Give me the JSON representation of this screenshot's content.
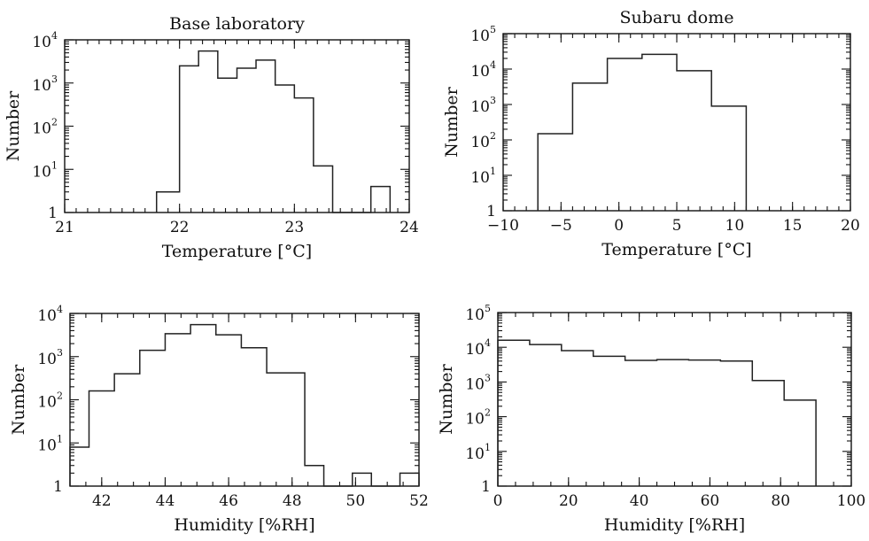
{
  "chart_data": [
    {
      "type": "histogram",
      "title": "Base laboratory",
      "xlabel": "Temperature [°C]",
      "ylabel": "Number",
      "xlim": [
        21,
        24
      ],
      "ylim": [
        1,
        10000
      ],
      "yscale": "log",
      "xticks": [
        21,
        22,
        23,
        24
      ],
      "xtick_labels": [
        "21",
        "22",
        "23",
        "24"
      ],
      "yticks": [
        1,
        10,
        100,
        1000,
        10000
      ],
      "series": [
        {
          "edges": [
            21.8,
            22.0,
            22.166,
            22.333,
            22.5,
            22.666,
            22.833,
            23.0,
            23.166,
            23.333,
            23.666,
            23.833
          ],
          "counts": [
            3,
            2500,
            5500,
            1300,
            2200,
            3400,
            900,
            450,
            12,
            1,
            4
          ]
        }
      ]
    },
    {
      "type": "histogram",
      "title": "Subaru dome",
      "xlabel": "Temperature [°C]",
      "ylabel": "Number",
      "xlim": [
        -10,
        20
      ],
      "ylim": [
        1,
        100000
      ],
      "yscale": "log",
      "xticks": [
        -10,
        -5,
        0,
        5,
        10,
        15,
        20
      ],
      "xtick_labels": [
        "−10",
        "−5",
        "0",
        "5",
        "10",
        "15",
        "20"
      ],
      "yticks": [
        1,
        10,
        100,
        1000,
        10000,
        100000
      ],
      "series": [
        {
          "edges": [
            -7,
            -4,
            -1,
            2,
            5,
            8,
            11
          ],
          "counts": [
            150,
            4000,
            20000,
            26000,
            9000,
            900
          ]
        }
      ]
    },
    {
      "type": "histogram",
      "title": "",
      "xlabel": "Humidity [%RH]",
      "ylabel": "Number",
      "xlim": [
        41,
        52
      ],
      "ylim": [
        1,
        10000
      ],
      "yscale": "log",
      "xticks": [
        42,
        44,
        46,
        48,
        50,
        52
      ],
      "xtick_labels": [
        "42",
        "44",
        "46",
        "48",
        "50",
        "52"
      ],
      "yticks": [
        1,
        10,
        100,
        1000,
        10000
      ],
      "series": [
        {
          "edges": [
            41.0,
            41.6,
            42.4,
            43.2,
            44.0,
            44.8,
            45.6,
            46.4,
            47.2,
            48.4,
            49.0,
            49.9,
            50.5,
            51.4,
            52.0
          ],
          "counts": [
            8,
            160,
            400,
            1400,
            3400,
            5500,
            3200,
            1600,
            420,
            3,
            1,
            2,
            1,
            2
          ]
        }
      ]
    },
    {
      "type": "histogram",
      "title": "",
      "xlabel": "Humidity [%RH]",
      "ylabel": "Number",
      "xlim": [
        0,
        100
      ],
      "ylim": [
        1,
        100000
      ],
      "yscale": "log",
      "xticks": [
        0,
        20,
        40,
        60,
        80,
        100
      ],
      "xtick_labels": [
        "0",
        "20",
        "40",
        "60",
        "80",
        "100"
      ],
      "yticks": [
        1,
        10,
        100,
        1000,
        10000,
        100000
      ],
      "series": [
        {
          "edges": [
            0,
            9,
            18,
            27,
            36,
            45,
            54,
            63,
            72,
            81,
            90
          ],
          "counts": [
            16000,
            12000,
            8000,
            5500,
            4200,
            4400,
            4300,
            4000,
            1100,
            300
          ]
        }
      ]
    }
  ]
}
